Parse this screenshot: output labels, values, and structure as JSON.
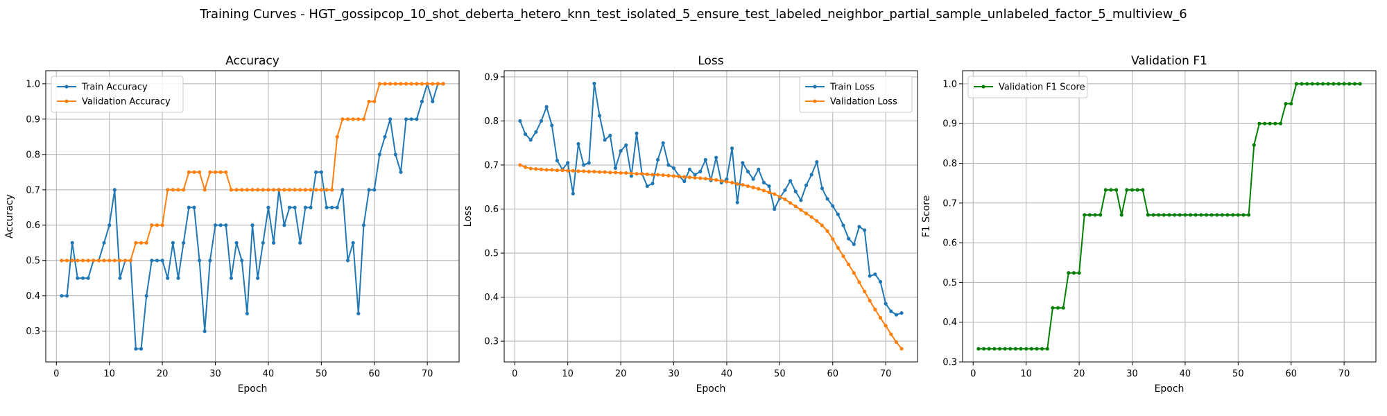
{
  "figure": {
    "suptitle": "Training Curves - HGT_gossipcop_10_shot_deberta_hetero_knn_test_isolated_5_ensure_test_labeled_neighbor_partial_sample_unlabeled_factor_5_multiview_6"
  },
  "colors": {
    "blue": "#1f77b4",
    "orange": "#ff7f0e",
    "green": "#008000"
  },
  "chart_data": [
    {
      "type": "line",
      "title": "Accuracy",
      "xlabel": "Epoch",
      "ylabel": "Accuracy",
      "xlim": [
        -2,
        76
      ],
      "ylim": [
        0.213,
        1.037
      ],
      "xticks": [
        0,
        10,
        20,
        30,
        40,
        50,
        60,
        70
      ],
      "yticks": [
        0.3,
        0.4,
        0.5,
        0.6,
        0.7,
        0.8,
        0.9,
        1.0
      ],
      "grid": true,
      "legend": "upper-left",
      "series": [
        {
          "name": "Train Accuracy",
          "color": "#1f77b4",
          "values": [
            0.4,
            0.4,
            0.55,
            0.45,
            0.45,
            0.45,
            0.5,
            0.5,
            0.55,
            0.6,
            0.7,
            0.45,
            0.5,
            0.5,
            0.25,
            0.25,
            0.4,
            0.5,
            0.5,
            0.5,
            0.45,
            0.55,
            0.45,
            0.55,
            0.65,
            0.65,
            0.5,
            0.3,
            0.5,
            0.6,
            0.6,
            0.6,
            0.45,
            0.55,
            0.5,
            0.35,
            0.6,
            0.45,
            0.55,
            0.65,
            0.55,
            0.7,
            0.6,
            0.65,
            0.65,
            0.55,
            0.65,
            0.65,
            0.75,
            0.75,
            0.65,
            0.65,
            0.65,
            0.7,
            0.5,
            0.55,
            0.35,
            0.6,
            0.7,
            0.7,
            0.8,
            0.85,
            0.9,
            0.8,
            0.75,
            0.9,
            0.9,
            0.9,
            0.95,
            1.0,
            0.95,
            1.0,
            1.0
          ]
        },
        {
          "name": "Validation Accuracy",
          "color": "#ff7f0e",
          "values": [
            0.5,
            0.5,
            0.5,
            0.5,
            0.5,
            0.5,
            0.5,
            0.5,
            0.5,
            0.5,
            0.5,
            0.5,
            0.5,
            0.5,
            0.55,
            0.55,
            0.55,
            0.6,
            0.6,
            0.6,
            0.7,
            0.7,
            0.7,
            0.7,
            0.75,
            0.75,
            0.75,
            0.7,
            0.75,
            0.75,
            0.75,
            0.75,
            0.7,
            0.7,
            0.7,
            0.7,
            0.7,
            0.7,
            0.7,
            0.7,
            0.7,
            0.7,
            0.7,
            0.7,
            0.7,
            0.7,
            0.7,
            0.7,
            0.7,
            0.7,
            0.7,
            0.7,
            0.85,
            0.9,
            0.9,
            0.9,
            0.9,
            0.9,
            0.95,
            0.95,
            1.0,
            1.0,
            1.0,
            1.0,
            1.0,
            1.0,
            1.0,
            1.0,
            1.0,
            1.0,
            1.0,
            1.0,
            1.0
          ]
        }
      ]
    },
    {
      "type": "line",
      "title": "Loss",
      "xlabel": "Epoch",
      "ylabel": "Loss",
      "xlim": [
        -2,
        76
      ],
      "ylim": [
        0.253,
        0.914
      ],
      "xticks": [
        0,
        10,
        20,
        30,
        40,
        50,
        60,
        70
      ],
      "yticks": [
        0.3,
        0.4,
        0.5,
        0.6,
        0.7,
        0.8,
        0.9
      ],
      "grid": true,
      "legend": "upper-right",
      "series": [
        {
          "name": "Train Loss",
          "color": "#1f77b4",
          "values": [
            0.8,
            0.77,
            0.757,
            0.775,
            0.8,
            0.832,
            0.79,
            0.71,
            0.69,
            0.705,
            0.635,
            0.748,
            0.7,
            0.705,
            0.885,
            0.812,
            0.757,
            0.767,
            0.693,
            0.732,
            0.745,
            0.675,
            0.772,
            0.68,
            0.652,
            0.658,
            0.712,
            0.75,
            0.7,
            0.693,
            0.675,
            0.663,
            0.69,
            0.678,
            0.685,
            0.712,
            0.665,
            0.717,
            0.66,
            0.668,
            0.738,
            0.615,
            0.705,
            0.685,
            0.668,
            0.69,
            0.66,
            0.652,
            0.6,
            0.625,
            0.643,
            0.664,
            0.64,
            0.62,
            0.654,
            0.678,
            0.707,
            0.647,
            0.623,
            0.607,
            0.588,
            0.563,
            0.533,
            0.52,
            0.56,
            0.552,
            0.448,
            0.452,
            0.435,
            0.385,
            0.368,
            0.36,
            0.364
          ]
        },
        {
          "name": "Validation Loss",
          "color": "#ff7f0e",
          "values": [
            0.7,
            0.695,
            0.692,
            0.691,
            0.69,
            0.689,
            0.689,
            0.688,
            0.688,
            0.687,
            0.687,
            0.686,
            0.686,
            0.685,
            0.685,
            0.684,
            0.684,
            0.683,
            0.683,
            0.682,
            0.682,
            0.681,
            0.68,
            0.68,
            0.679,
            0.678,
            0.678,
            0.677,
            0.676,
            0.675,
            0.674,
            0.673,
            0.672,
            0.671,
            0.67,
            0.669,
            0.668,
            0.666,
            0.664,
            0.662,
            0.66,
            0.657,
            0.655,
            0.652,
            0.649,
            0.646,
            0.642,
            0.638,
            0.634,
            0.628,
            0.622,
            0.614,
            0.606,
            0.598,
            0.59,
            0.582,
            0.573,
            0.563,
            0.55,
            0.532,
            0.512,
            0.493,
            0.474,
            0.455,
            0.434,
            0.413,
            0.392,
            0.372,
            0.353,
            0.335,
            0.316,
            0.298,
            0.283
          ]
        }
      ]
    },
    {
      "type": "line",
      "title": "Validation F1",
      "xlabel": "Epoch",
      "ylabel": "F1 Score",
      "xlim": [
        -2,
        76
      ],
      "ylim": [
        0.3,
        1.033
      ],
      "xticks": [
        0,
        10,
        20,
        30,
        40,
        50,
        60,
        70
      ],
      "yticks": [
        0.3,
        0.4,
        0.5,
        0.6,
        0.7,
        0.8,
        0.9,
        1.0
      ],
      "grid": true,
      "legend": "upper-left",
      "series": [
        {
          "name": "Validation F1 Score",
          "color": "#008000",
          "values": [
            0.333,
            0.333,
            0.333,
            0.333,
            0.333,
            0.333,
            0.333,
            0.333,
            0.333,
            0.333,
            0.333,
            0.333,
            0.333,
            0.333,
            0.436,
            0.436,
            0.436,
            0.524,
            0.524,
            0.524,
            0.67,
            0.67,
            0.67,
            0.67,
            0.733,
            0.733,
            0.733,
            0.67,
            0.733,
            0.733,
            0.733,
            0.733,
            0.67,
            0.67,
            0.67,
            0.67,
            0.67,
            0.67,
            0.67,
            0.67,
            0.67,
            0.67,
            0.67,
            0.67,
            0.67,
            0.67,
            0.67,
            0.67,
            0.67,
            0.67,
            0.67,
            0.67,
            0.846,
            0.9,
            0.9,
            0.9,
            0.9,
            0.9,
            0.95,
            0.95,
            1.0,
            1.0,
            1.0,
            1.0,
            1.0,
            1.0,
            1.0,
            1.0,
            1.0,
            1.0,
            1.0,
            1.0,
            1.0
          ]
        }
      ]
    }
  ]
}
